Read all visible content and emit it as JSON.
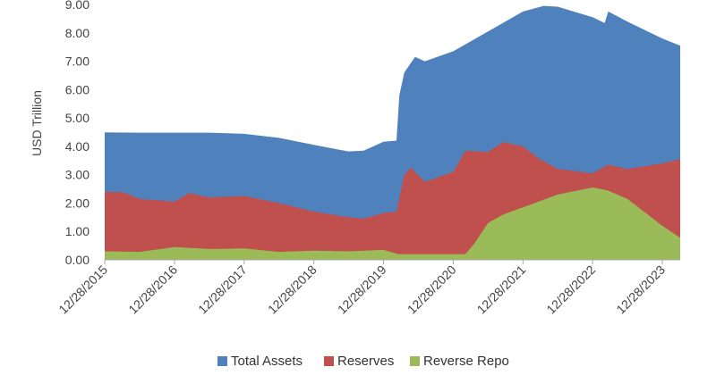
{
  "chart_data": {
    "type": "area",
    "ylabel": "USD Trillion",
    "ylim": [
      0,
      9
    ],
    "yticks": [
      "0.00",
      "1.00",
      "2.00",
      "3.00",
      "4.00",
      "5.00",
      "6.00",
      "7.00",
      "8.00",
      "9.00"
    ],
    "x_range": [
      "2015-12-28",
      "2024-03-31"
    ],
    "xtick_labels": [
      "12/28/2015",
      "12/28/2016",
      "12/28/2017",
      "12/28/2018",
      "12/28/2019",
      "12/28/2020",
      "12/28/2021",
      "12/28/2022",
      "12/28/2023"
    ],
    "legend_position": "bottom",
    "stacking": "overlapping (each series drawn from zero)",
    "series": [
      {
        "name": "Total Assets",
        "color": "#4F81BD",
        "points": [
          [
            "2015-12-28",
            4.49
          ],
          [
            "2016-06-28",
            4.48
          ],
          [
            "2016-12-28",
            4.48
          ],
          [
            "2017-06-28",
            4.48
          ],
          [
            "2017-12-28",
            4.44
          ],
          [
            "2018-06-28",
            4.3
          ],
          [
            "2018-12-28",
            4.05
          ],
          [
            "2019-06-28",
            3.82
          ],
          [
            "2019-09-15",
            3.85
          ],
          [
            "2019-12-28",
            4.16
          ],
          [
            "2020-03-05",
            4.2
          ],
          [
            "2020-03-20",
            5.8
          ],
          [
            "2020-04-15",
            6.6
          ],
          [
            "2020-06-10",
            7.15
          ],
          [
            "2020-08-01",
            7.0
          ],
          [
            "2020-12-28",
            7.35
          ],
          [
            "2021-06-28",
            8.05
          ],
          [
            "2021-12-28",
            8.75
          ],
          [
            "2022-04-15",
            8.95
          ],
          [
            "2022-06-28",
            8.92
          ],
          [
            "2022-12-28",
            8.55
          ],
          [
            "2023-03-01",
            8.35
          ],
          [
            "2023-03-20",
            8.75
          ],
          [
            "2023-06-28",
            8.4
          ],
          [
            "2023-12-28",
            7.8
          ],
          [
            "2024-03-31",
            7.55
          ]
        ]
      },
      {
        "name": "Reserves",
        "color": "#C0504D",
        "points": [
          [
            "2015-12-28",
            2.4
          ],
          [
            "2016-04-01",
            2.38
          ],
          [
            "2016-06-28",
            2.15
          ],
          [
            "2016-12-28",
            2.05
          ],
          [
            "2017-03-15",
            2.35
          ],
          [
            "2017-06-28",
            2.2
          ],
          [
            "2017-12-28",
            2.25
          ],
          [
            "2018-06-28",
            2.0
          ],
          [
            "2018-12-28",
            1.7
          ],
          [
            "2019-06-28",
            1.5
          ],
          [
            "2019-09-15",
            1.45
          ],
          [
            "2019-12-28",
            1.65
          ],
          [
            "2020-03-05",
            1.7
          ],
          [
            "2020-04-15",
            3.0
          ],
          [
            "2020-05-20",
            3.25
          ],
          [
            "2020-08-01",
            2.75
          ],
          [
            "2020-12-28",
            3.1
          ],
          [
            "2021-03-01",
            3.85
          ],
          [
            "2021-06-28",
            3.8
          ],
          [
            "2021-09-15",
            4.15
          ],
          [
            "2021-12-28",
            4.0
          ],
          [
            "2022-03-15",
            3.6
          ],
          [
            "2022-06-28",
            3.2
          ],
          [
            "2022-12-28",
            3.05
          ],
          [
            "2023-03-20",
            3.35
          ],
          [
            "2023-06-28",
            3.2
          ],
          [
            "2023-12-28",
            3.4
          ],
          [
            "2024-03-31",
            3.55
          ]
        ]
      },
      {
        "name": "Reverse Repo",
        "color": "#9BBB59",
        "points": [
          [
            "2015-12-28",
            0.3
          ],
          [
            "2016-06-28",
            0.28
          ],
          [
            "2016-12-28",
            0.45
          ],
          [
            "2017-06-28",
            0.38
          ],
          [
            "2017-12-28",
            0.4
          ],
          [
            "2018-06-28",
            0.28
          ],
          [
            "2018-12-28",
            0.32
          ],
          [
            "2019-06-28",
            0.3
          ],
          [
            "2019-12-28",
            0.35
          ],
          [
            "2020-03-15",
            0.2
          ],
          [
            "2020-12-28",
            0.2
          ],
          [
            "2021-03-01",
            0.2
          ],
          [
            "2021-04-15",
            0.55
          ],
          [
            "2021-06-28",
            1.3
          ],
          [
            "2021-09-15",
            1.6
          ],
          [
            "2021-12-28",
            1.85
          ],
          [
            "2022-06-28",
            2.3
          ],
          [
            "2022-12-28",
            2.55
          ],
          [
            "2023-03-15",
            2.45
          ],
          [
            "2023-06-28",
            2.15
          ],
          [
            "2023-12-28",
            1.2
          ],
          [
            "2024-03-31",
            0.78
          ]
        ]
      }
    ]
  }
}
